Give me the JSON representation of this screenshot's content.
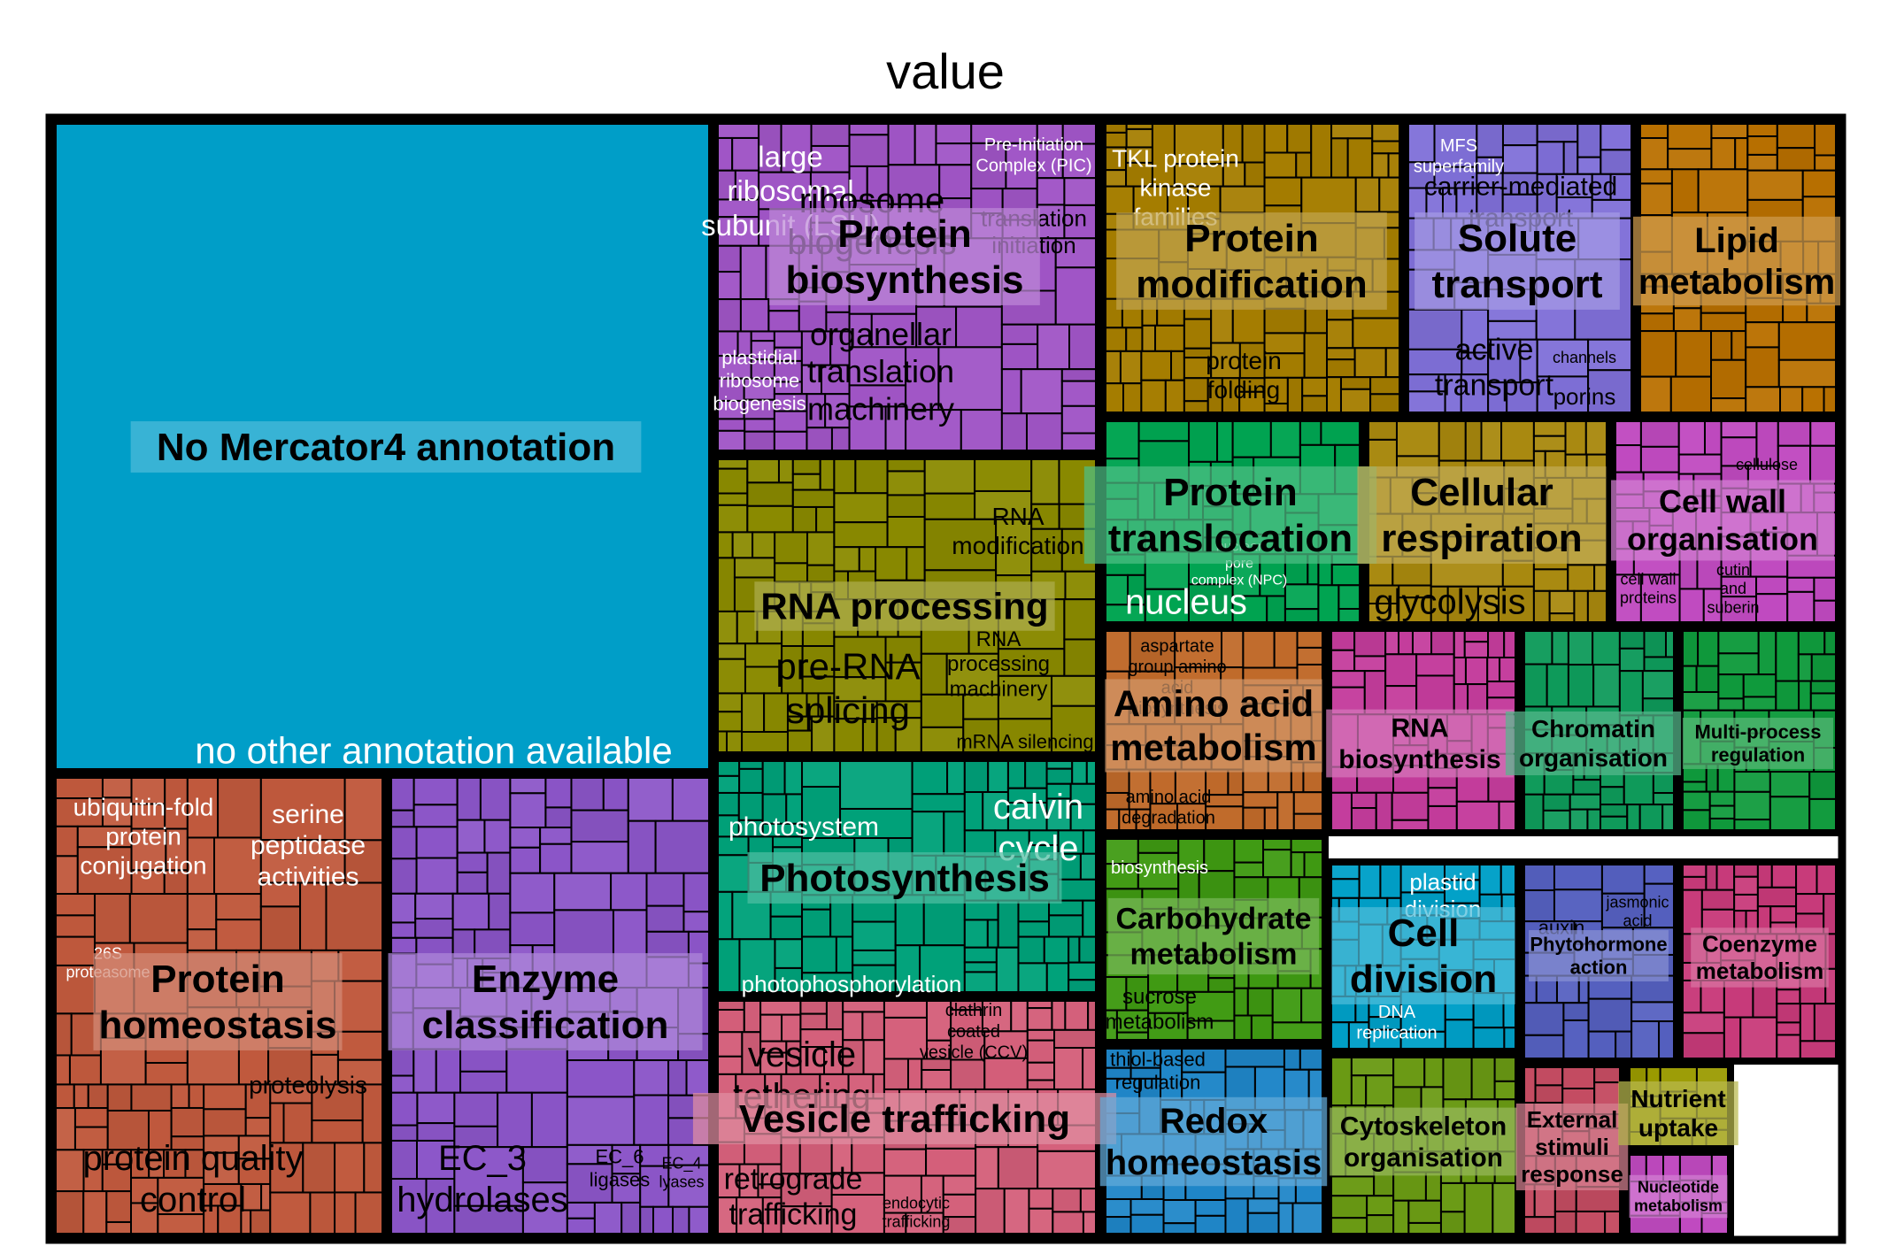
{
  "chart_data": {
    "type": "treemap",
    "title": "value",
    "groups": [
      {
        "name": "No Mercator4 annotation",
        "color": "#009ec8",
        "subgroups": [
          "no other annotation available"
        ]
      },
      {
        "name": "Protein biosynthesis",
        "color": "#a055c6",
        "subgroups": [
          "large ribosomal subunit (LSU)",
          "ribosome biogenesis",
          "organellar translation machinery",
          "plastidial ribosome biogenesis",
          "Pre-Initiation Complex (PIC) module",
          "translation initiation"
        ]
      },
      {
        "name": "Protein modification",
        "color": "#a57d00",
        "subgroups": [
          "TKL protein kinase families",
          "protein folding"
        ]
      },
      {
        "name": "Solute transport",
        "color": "#7f6fd8",
        "subgroups": [
          "MFS superfamily",
          "carrier-mediated transport",
          "active transport",
          "channels",
          "porins"
        ]
      },
      {
        "name": "Lipid metabolism",
        "color": "#b97000",
        "subgroups": []
      },
      {
        "name": "RNA processing",
        "color": "#8a8a00",
        "subgroups": [
          "RNA modification",
          "pre-RNA splicing",
          "RNA processing machinery",
          "mRNA silencing"
        ]
      },
      {
        "name": "Protein translocation",
        "color": "#00a451",
        "subgroups": [
          "nucleus",
          "nuclear pore complex (NPC)"
        ]
      },
      {
        "name": "Cellular respiration",
        "color": "#a8880e",
        "subgroups": [
          "glycolysis"
        ]
      },
      {
        "name": "Cell wall organisation",
        "color": "#c04ac0",
        "subgroups": [
          "cellulose",
          "cell wall proteins",
          "cutin and suberin"
        ]
      },
      {
        "name": "Protein homeostasis",
        "color": "#c0593d",
        "subgroups": [
          "ubiquitin-fold protein conjugation",
          "serine peptidase activities",
          "26S proteasome",
          "proteolysis",
          "protein quality control"
        ]
      },
      {
        "name": "Enzyme classification",
        "color": "#8b55c8",
        "subgroups": [
          "EC_3 hydrolases",
          "EC_6 ligases",
          "EC_4 lyases"
        ]
      },
      {
        "name": "Photosynthesis",
        "color": "#00a27a",
        "subgroups": [
          "photosystem",
          "calvin cycle",
          "photophosphorylation"
        ]
      },
      {
        "name": "Vesicle trafficking",
        "color": "#d45f7a",
        "subgroups": [
          "vesicle tethering",
          "clathrin coated vesicle (CCV)",
          "retrograde trafficking",
          "endocytic trafficking"
        ]
      },
      {
        "name": "Amino acid metabolism",
        "color": "#c06a2a",
        "subgroups": [
          "aspartate group amino acid biosynthesis",
          "amino acid degradation"
        ]
      },
      {
        "name": "RNA biosynthesis",
        "color": "#c43c9c",
        "subgroups": []
      },
      {
        "name": "Chromatin organisation",
        "color": "#0e9a5a",
        "subgroups": []
      },
      {
        "name": "Multi-process regulation",
        "color": "#0f9a3c",
        "subgroups": []
      },
      {
        "name": "Carbohydrate metabolism",
        "color": "#3f9a12",
        "subgroups": [
          "biosynthesis",
          "sucrose metabolism"
        ]
      },
      {
        "name": "Cell division",
        "color": "#00a0c8",
        "subgroups": [
          "plastid division",
          "DNA replication"
        ]
      },
      {
        "name": "Phytohormone action",
        "color": "#5560c0",
        "subgroups": [
          "auxin",
          "jasmonic acid"
        ]
      },
      {
        "name": "Coenzyme metabolism",
        "color": "#c83a7a",
        "subgroups": []
      },
      {
        "name": "Redox homeostasis",
        "color": "#1f86c8",
        "subgroups": [
          "thiol-based regulation"
        ]
      },
      {
        "name": "Cytoskeleton organisation",
        "color": "#6a9a14",
        "subgroups": []
      },
      {
        "name": "External stimuli response",
        "color": "#c44c62",
        "subgroups": []
      },
      {
        "name": "Nutrient uptake",
        "color": "#9a9a00",
        "subgroups": []
      },
      {
        "name": "Nucleotide metabolism",
        "color": "#c04ac0",
        "subgroups": []
      }
    ]
  }
}
